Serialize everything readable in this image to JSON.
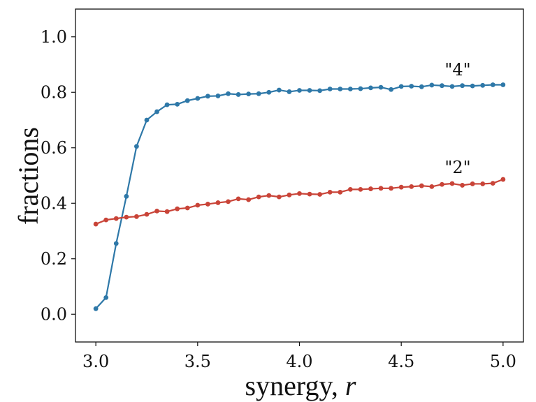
{
  "chart_data": {
    "type": "line",
    "title": "",
    "xlabel": "synergy, ",
    "xlabel_var": "r",
    "ylabel": "fractions",
    "xlim": [
      2.9,
      5.1
    ],
    "ylim": [
      -0.1,
      1.1
    ],
    "xticks": [
      3.0,
      3.5,
      4.0,
      4.5,
      5.0
    ],
    "xtick_labels": [
      "3.0",
      "3.5",
      "4.0",
      "4.5",
      "5.0"
    ],
    "yticks": [
      0.0,
      0.2,
      0.4,
      0.6,
      0.8,
      1.0
    ],
    "ytick_labels": [
      "0.0",
      "0.2",
      "0.4",
      "0.6",
      "0.8",
      "1.0"
    ],
    "grid": false,
    "x": [
      3.0,
      3.05,
      3.1,
      3.15,
      3.2,
      3.25,
      3.3,
      3.35,
      3.4,
      3.45,
      3.5,
      3.55,
      3.6,
      3.65,
      3.7,
      3.75,
      3.8,
      3.85,
      3.9,
      3.95,
      4.0,
      4.05,
      4.1,
      4.15,
      4.2,
      4.25,
      4.3,
      4.35,
      4.4,
      4.45,
      4.5,
      4.55,
      4.6,
      4.65,
      4.7,
      4.75,
      4.8,
      4.85,
      4.9,
      4.95,
      5.0
    ],
    "series": [
      {
        "name": "\"4\"",
        "color": "#2e78a8",
        "values": [
          0.02,
          0.06,
          0.255,
          0.425,
          0.605,
          0.7,
          0.73,
          0.755,
          0.757,
          0.77,
          0.778,
          0.786,
          0.787,
          0.795,
          0.792,
          0.794,
          0.795,
          0.8,
          0.808,
          0.802,
          0.807,
          0.807,
          0.806,
          0.812,
          0.812,
          0.812,
          0.813,
          0.816,
          0.818,
          0.81,
          0.821,
          0.822,
          0.82,
          0.826,
          0.824,
          0.821,
          0.824,
          0.823,
          0.825,
          0.827,
          0.827
        ]
      },
      {
        "name": "\"2\"",
        "color": "#c94438",
        "values": [
          0.325,
          0.34,
          0.345,
          0.35,
          0.352,
          0.36,
          0.372,
          0.37,
          0.38,
          0.383,
          0.393,
          0.397,
          0.402,
          0.406,
          0.416,
          0.413,
          0.423,
          0.428,
          0.423,
          0.43,
          0.435,
          0.433,
          0.432,
          0.44,
          0.44,
          0.45,
          0.45,
          0.452,
          0.454,
          0.454,
          0.458,
          0.46,
          0.463,
          0.46,
          0.468,
          0.471,
          0.465,
          0.47,
          0.47,
          0.472,
          0.486
        ]
      }
    ]
  }
}
